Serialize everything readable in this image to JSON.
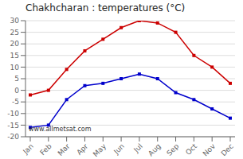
{
  "chart_data": {
    "type": "line",
    "title": "Chakhcharan : temperatures (°C)",
    "categories": [
      "Jan",
      "Feb",
      "Mar",
      "Apr",
      "May",
      "Jun",
      "Jul",
      "Aug",
      "Sep",
      "Oct",
      "Nov",
      "Dec"
    ],
    "series": [
      {
        "color": "#cc0000",
        "marker": "square",
        "values": [
          -2,
          0,
          9,
          17,
          22,
          27,
          30,
          29,
          25,
          15,
          10,
          3
        ]
      },
      {
        "color": "#0000cc",
        "marker": "square",
        "values": [
          -16,
          -15,
          -4,
          2,
          3,
          5,
          7,
          5,
          -1,
          -4,
          -8,
          -12
        ]
      }
    ],
    "ylim": [
      -20,
      30
    ],
    "yticks": [
      -20,
      -15,
      -10,
      -5,
      0,
      5,
      10,
      15,
      20,
      25,
      30
    ],
    "grid": "y",
    "annotations": [
      "www.allmetsat.com"
    ]
  }
}
